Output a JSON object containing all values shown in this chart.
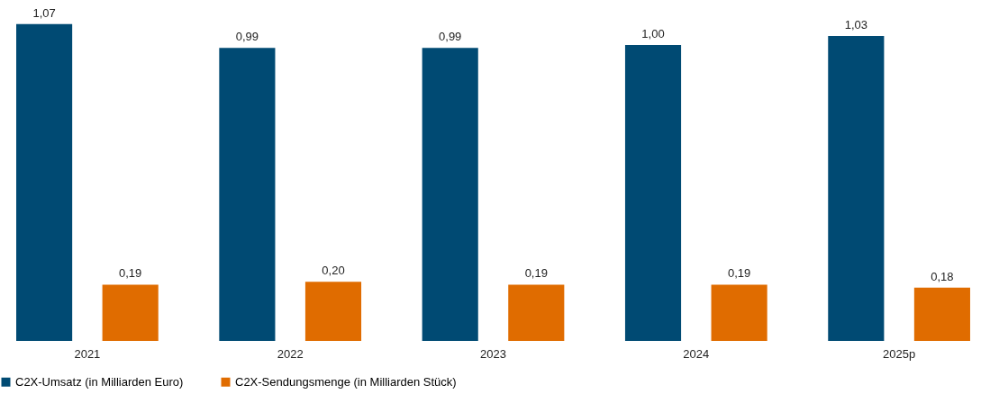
{
  "chart_data": {
    "type": "bar",
    "categories": [
      "2021",
      "2022",
      "2023",
      "2024",
      "2025p"
    ],
    "series": [
      {
        "name": "C2X-Umsatz (in Milliarden Euro)",
        "color": "#004a73",
        "values": [
          1.07,
          0.99,
          0.99,
          1.0,
          1.03
        ],
        "value_labels": [
          "1,07",
          "0,99",
          "0,99",
          "1,00",
          "1,03"
        ]
      },
      {
        "name": "C2X-Sendungsmenge (in Milliarden Stück)",
        "color": "#e06c00",
        "values": [
          0.19,
          0.2,
          0.19,
          0.19,
          0.18
        ],
        "value_labels": [
          "0,19",
          "0,20",
          "0,19",
          "0,19",
          "0,18"
        ]
      }
    ],
    "legend": "bottom"
  }
}
